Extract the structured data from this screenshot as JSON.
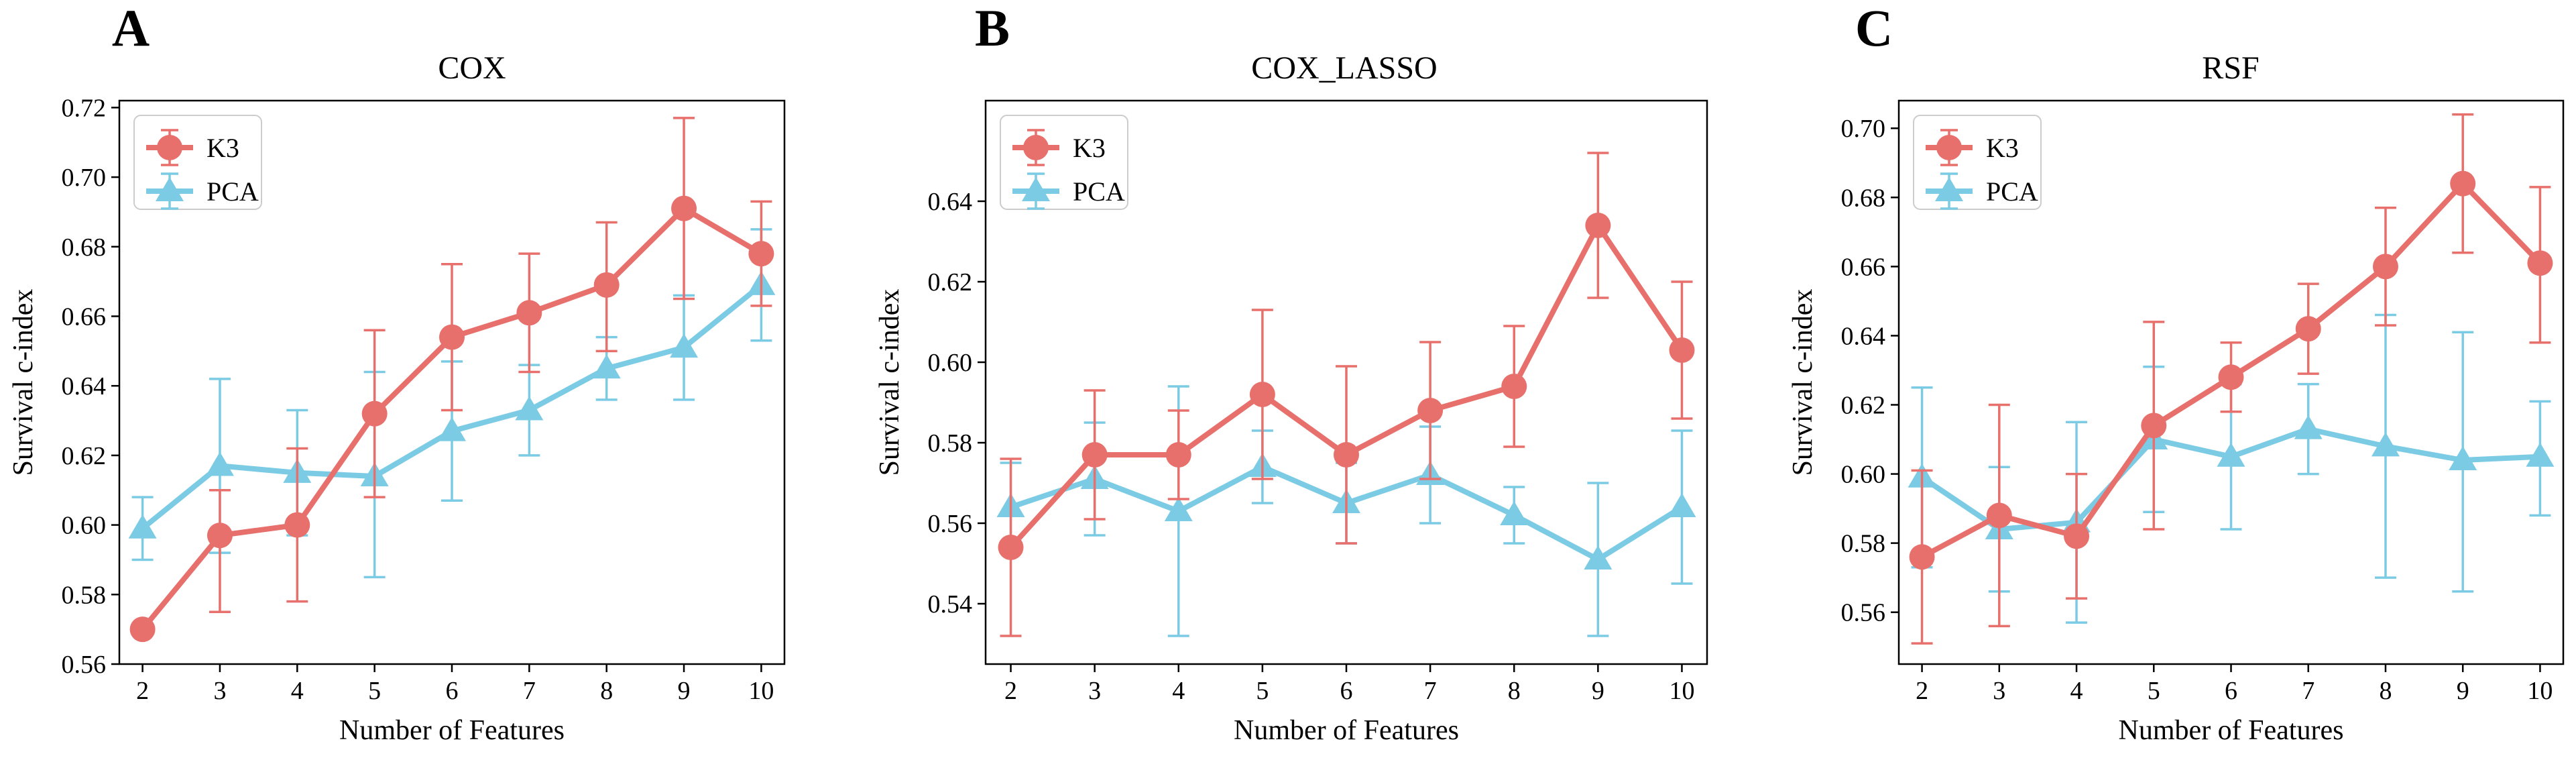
{
  "colors": {
    "K3": "#e8706c",
    "PCA": "#7ccbe4"
  },
  "chart_data": [
    {
      "type": "line",
      "panel": "A",
      "title": "COX",
      "xlabel": "Number of Features",
      "ylabel": "Survival c-index",
      "x": [
        2,
        3,
        4,
        5,
        6,
        7,
        8,
        9,
        10
      ],
      "xlim": [
        1.7,
        10.3
      ],
      "ylim": [
        0.56,
        0.722
      ],
      "yticks": [
        0.56,
        0.58,
        0.6,
        0.62,
        0.64,
        0.66,
        0.68,
        0.7,
        0.72
      ],
      "ytick_labels": [
        "0.56",
        "0.58",
        "0.60",
        "0.62",
        "0.64",
        "0.66",
        "0.68",
        "0.70",
        "0.72"
      ],
      "legend": {
        "position": "top-left",
        "entries": [
          "K3",
          "PCA"
        ]
      },
      "series": [
        {
          "name": "K3",
          "marker": "circle",
          "values": [
            0.57,
            0.597,
            0.6,
            0.632,
            0.654,
            0.661,
            0.669,
            0.691,
            0.678
          ],
          "err_low": [
            null,
            0.575,
            0.578,
            0.608,
            0.633,
            0.644,
            0.65,
            0.665,
            0.663
          ],
          "err_high": [
            null,
            0.61,
            0.622,
            0.656,
            0.675,
            0.678,
            0.687,
            0.717,
            0.693
          ]
        },
        {
          "name": "PCA",
          "marker": "triangle",
          "values": [
            0.599,
            0.617,
            0.615,
            0.614,
            0.627,
            0.633,
            0.645,
            0.651,
            0.669
          ],
          "err_low": [
            0.59,
            0.592,
            0.597,
            0.585,
            0.607,
            0.62,
            0.636,
            0.636,
            0.653
          ],
          "err_high": [
            0.608,
            0.642,
            0.633,
            0.644,
            0.647,
            0.646,
            0.654,
            0.666,
            0.685
          ]
        }
      ]
    },
    {
      "type": "line",
      "panel": "B",
      "title": "COX_LASSO",
      "xlabel": "Number of Features",
      "ylabel": "Survival c-index",
      "x": [
        2,
        3,
        4,
        5,
        6,
        7,
        8,
        9,
        10
      ],
      "xlim": [
        1.7,
        10.3
      ],
      "ylim": [
        0.525,
        0.665
      ],
      "yticks": [
        0.54,
        0.56,
        0.58,
        0.6,
        0.62,
        0.64
      ],
      "ytick_labels": [
        "0.54",
        "0.56",
        "0.58",
        "0.60",
        "0.62",
        "0.64"
      ],
      "legend": {
        "position": "top-left",
        "entries": [
          "K3",
          "PCA"
        ]
      },
      "series": [
        {
          "name": "K3",
          "marker": "circle",
          "values": [
            0.554,
            0.577,
            0.577,
            0.592,
            0.577,
            0.588,
            0.594,
            0.634,
            0.603
          ],
          "err_low": [
            0.532,
            0.561,
            0.566,
            0.571,
            0.555,
            0.571,
            0.579,
            0.616,
            0.586
          ],
          "err_high": [
            0.576,
            0.593,
            0.588,
            0.613,
            0.599,
            0.605,
            0.609,
            0.652,
            0.62
          ]
        },
        {
          "name": "PCA",
          "marker": "triangle",
          "values": [
            0.564,
            0.571,
            0.563,
            0.574,
            0.565,
            0.572,
            0.562,
            0.551,
            0.564
          ],
          "err_low": [
            0.553,
            0.557,
            0.532,
            0.565,
            0.555,
            0.56,
            0.555,
            0.532,
            0.545
          ],
          "err_high": [
            0.575,
            0.585,
            0.594,
            0.583,
            0.575,
            0.584,
            0.569,
            0.57,
            0.583
          ]
        }
      ]
    },
    {
      "type": "line",
      "panel": "C",
      "title": "RSF",
      "xlabel": "Number of Features",
      "ylabel": "Survival c-index",
      "x": [
        2,
        3,
        4,
        5,
        6,
        7,
        8,
        9,
        10
      ],
      "xlim": [
        1.7,
        10.3
      ],
      "ylim": [
        0.545,
        0.708
      ],
      "yticks": [
        0.56,
        0.58,
        0.6,
        0.62,
        0.64,
        0.66,
        0.68,
        0.7
      ],
      "ytick_labels": [
        "0.56",
        "0.58",
        "0.60",
        "0.62",
        "0.64",
        "0.66",
        "0.68",
        "0.70"
      ],
      "legend": {
        "position": "top-left",
        "entries": [
          "K3",
          "PCA"
        ]
      },
      "series": [
        {
          "name": "K3",
          "marker": "circle",
          "values": [
            0.576,
            0.588,
            0.582,
            0.614,
            0.628,
            0.642,
            0.66,
            0.684,
            0.661
          ],
          "err_low": [
            0.551,
            0.556,
            0.564,
            0.584,
            0.618,
            0.629,
            0.643,
            0.664,
            0.638
          ],
          "err_high": [
            0.601,
            0.62,
            0.6,
            0.644,
            0.638,
            0.655,
            0.677,
            0.704,
            0.683
          ]
        },
        {
          "name": "PCA",
          "marker": "triangle",
          "values": [
            0.599,
            0.584,
            0.586,
            0.61,
            0.605,
            0.613,
            0.608,
            0.604,
            0.605
          ],
          "err_low": [
            0.573,
            0.566,
            0.557,
            0.589,
            0.584,
            0.6,
            0.57,
            0.566,
            0.588
          ],
          "err_high": [
            0.625,
            0.602,
            0.615,
            0.631,
            0.626,
            0.626,
            0.646,
            0.641,
            0.621
          ]
        }
      ]
    }
  ]
}
